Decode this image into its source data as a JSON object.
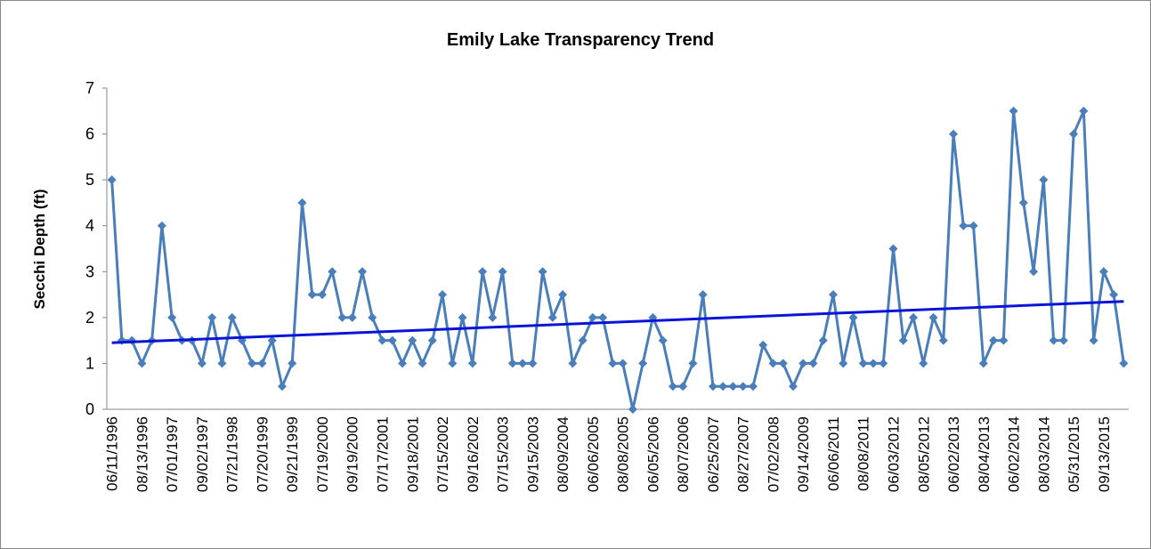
{
  "chart_data": {
    "type": "line",
    "title": "Emily Lake Transparency Trend",
    "y_label": "Secchi Depth (ft)",
    "categories": [
      "06/11/1996",
      null,
      null,
      "08/13/1996",
      null,
      null,
      "07/01/1997",
      null,
      null,
      "09/02/1997",
      null,
      null,
      "07/21/1998",
      null,
      null,
      "07/20/1999",
      null,
      null,
      "09/21/1999",
      null,
      null,
      "07/19/2000",
      null,
      null,
      "09/19/2000",
      null,
      null,
      "07/17/2001",
      null,
      null,
      "09/18/2001",
      null,
      null,
      "07/15/2002",
      null,
      null,
      "09/16/2002",
      null,
      null,
      "07/15/2003",
      null,
      null,
      "09/15/2003",
      null,
      null,
      "08/09/2004",
      null,
      null,
      "06/06/2005",
      null,
      null,
      "08/08/2005",
      null,
      null,
      "06/05/2006",
      null,
      null,
      "08/07/2006",
      null,
      null,
      "06/25/2007",
      null,
      null,
      "08/27/2007",
      null,
      null,
      "07/02/2008",
      null,
      null,
      "09/14/2009",
      null,
      null,
      "06/06/2011",
      null,
      null,
      "08/08/2011",
      null,
      null,
      "06/03/2012",
      null,
      null,
      "08/05/2012",
      null,
      null,
      "06/02/2013",
      null,
      null,
      "08/04/2013",
      null,
      null,
      "06/02/2014",
      null,
      null,
      "08/03/2014",
      null,
      null,
      "05/31/2015",
      null,
      null,
      "09/13/2015",
      null,
      null
    ],
    "series": [
      {
        "color": "#4a7ebb",
        "values": [
          5,
          1.5,
          1.5,
          1,
          1.5,
          4,
          2,
          1.5,
          1.5,
          1,
          2,
          1,
          2,
          1.5,
          1,
          1,
          1.5,
          0.5,
          1,
          4.5,
          2.5,
          2.5,
          3,
          2,
          2,
          3,
          2,
          1.5,
          1.5,
          1,
          1.5,
          1,
          1.5,
          2.5,
          1,
          2,
          1,
          3,
          2,
          3,
          1,
          1,
          1,
          3,
          2,
          2.5,
          1,
          1.5,
          2,
          2,
          1,
          1,
          0,
          1,
          2,
          1.5,
          0.5,
          0.5,
          1,
          2.5,
          0.5,
          0.5,
          0.5,
          0.5,
          0.5,
          1.4,
          1,
          1,
          0.5,
          1,
          1,
          1.5,
          2.5,
          1,
          2,
          1,
          1,
          1,
          3.5,
          1.5,
          2,
          1,
          2,
          1.5,
          6,
          4,
          4,
          1,
          1.5,
          1.5,
          6.5,
          4.5,
          3,
          5,
          1.5,
          1.5,
          6,
          6.5,
          1.5,
          3,
          2.5,
          1
        ]
      }
    ],
    "trendline": {
      "color": "#0a14d8",
      "values": [
        1.45,
        2.35
      ]
    },
    "ylim": [
      0,
      7
    ],
    "yticks": [
      0,
      1,
      2,
      3,
      4,
      5,
      6,
      7
    ]
  }
}
